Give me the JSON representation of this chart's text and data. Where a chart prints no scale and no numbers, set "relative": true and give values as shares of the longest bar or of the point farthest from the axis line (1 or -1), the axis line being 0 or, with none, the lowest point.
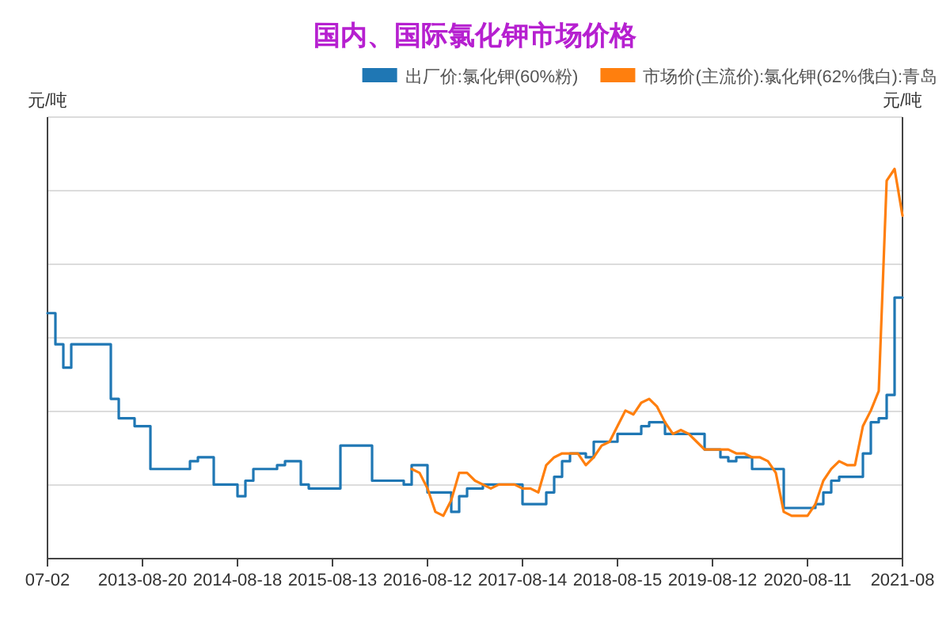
{
  "chart_data": {
    "type": "line",
    "title": "国内、国际氯化钾市场价格",
    "ylabel": "元/吨",
    "y2label": "元/吨",
    "relative": true,
    "grid": "y",
    "legend": "top right",
    "categories": [
      "07-02",
      null,
      null,
      null,
      null,
      null,
      null,
      null,
      null,
      null,
      null,
      null,
      "2013-08-20",
      null,
      null,
      null,
      null,
      null,
      null,
      null,
      null,
      null,
      null,
      null,
      "2014-08-18",
      null,
      null,
      null,
      null,
      null,
      null,
      null,
      null,
      null,
      null,
      null,
      "2015-08-13",
      null,
      null,
      null,
      null,
      null,
      null,
      null,
      null,
      null,
      null,
      null,
      "2016-08-12",
      null,
      null,
      null,
      null,
      null,
      null,
      null,
      null,
      null,
      null,
      null,
      "2017-08-14",
      null,
      null,
      null,
      null,
      null,
      null,
      null,
      null,
      null,
      null,
      null,
      "2018-08-15",
      null,
      null,
      null,
      null,
      null,
      null,
      null,
      null,
      null,
      null,
      null,
      "2019-08-12",
      null,
      null,
      null,
      null,
      null,
      null,
      null,
      null,
      null,
      null,
      null,
      "2020-08-11",
      null,
      null,
      null,
      null,
      null,
      null,
      null,
      null,
      null,
      null,
      null,
      "2021-08"
    ],
    "series": [
      {
        "name": "出厂价:氯化钾(60%粉)",
        "type": "step",
        "color": "#1f77b4",
        "values": [
          0.63,
          0.55,
          0.49,
          0.55,
          0.55,
          0.55,
          0.55,
          0.55,
          0.41,
          0.36,
          0.36,
          0.34,
          0.34,
          0.23,
          0.23,
          0.23,
          0.23,
          0.23,
          0.25,
          0.26,
          0.26,
          0.19,
          0.19,
          0.19,
          0.16,
          0.2,
          0.23,
          0.23,
          0.23,
          0.24,
          0.25,
          0.25,
          0.19,
          0.18,
          0.18,
          0.18,
          0.18,
          0.29,
          0.29,
          0.29,
          0.29,
          0.2,
          0.2,
          0.2,
          0.2,
          0.19,
          0.24,
          0.24,
          0.17,
          0.17,
          0.17,
          0.12,
          0.16,
          0.18,
          0.18,
          0.19,
          0.19,
          0.19,
          0.19,
          0.19,
          0.14,
          0.14,
          0.14,
          0.17,
          0.21,
          0.25,
          0.27,
          0.27,
          0.26,
          0.3,
          0.3,
          0.3,
          0.32,
          0.32,
          0.32,
          0.34,
          0.35,
          0.35,
          0.32,
          0.32,
          0.32,
          0.32,
          0.32,
          0.28,
          0.28,
          0.26,
          0.25,
          0.26,
          0.26,
          0.23,
          0.23,
          0.23,
          0.23,
          0.13,
          0.13,
          0.13,
          0.13,
          0.14,
          0.17,
          0.2,
          0.21,
          0.21,
          0.21,
          0.27,
          0.35,
          0.36,
          0.42,
          0.67,
          0.67
        ]
      },
      {
        "name": "市场价(主流价):氯化钾(62%俄白):青岛",
        "type": "line",
        "color": "#ff7f0e",
        "values": [
          null,
          null,
          null,
          null,
          null,
          null,
          null,
          null,
          null,
          null,
          null,
          null,
          null,
          null,
          null,
          null,
          null,
          null,
          null,
          null,
          null,
          null,
          null,
          null,
          null,
          null,
          null,
          null,
          null,
          null,
          null,
          null,
          null,
          null,
          null,
          null,
          null,
          null,
          null,
          null,
          null,
          null,
          null,
          null,
          null,
          null,
          0.23,
          0.22,
          0.18,
          0.12,
          0.11,
          0.15,
          0.22,
          0.22,
          0.2,
          0.19,
          0.18,
          0.19,
          0.19,
          0.19,
          0.18,
          0.18,
          0.17,
          0.24,
          0.26,
          0.27,
          0.27,
          0.27,
          0.24,
          0.26,
          0.29,
          0.3,
          0.34,
          0.38,
          0.37,
          0.4,
          0.41,
          0.39,
          0.35,
          0.32,
          0.33,
          0.32,
          0.3,
          0.28,
          0.28,
          0.28,
          0.28,
          0.27,
          0.27,
          0.26,
          0.26,
          0.25,
          0.22,
          0.12,
          0.11,
          0.11,
          0.11,
          0.14,
          0.2,
          0.23,
          0.25,
          0.24,
          0.24,
          0.34,
          0.38,
          0.43,
          0.97,
          1,
          0.88
        ]
      }
    ]
  }
}
